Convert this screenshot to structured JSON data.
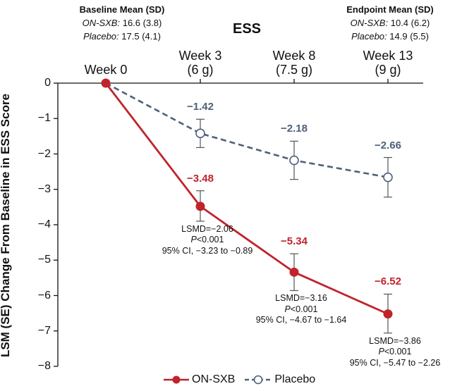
{
  "baseline": {
    "title": "Baseline Mean (SD)",
    "sxb_label": "ON-SXB:",
    "sxb_value": "16.6 (3.8)",
    "placebo_label": "Placebo:",
    "placebo_value": "17.5 (4.1)"
  },
  "endpoint": {
    "title": "Endpoint Mean (SD)",
    "sxb_label": "ON-SXB:",
    "sxb_value": "10.4 (6.2)",
    "placebo_label": "Placebo:",
    "placebo_value": "14.9 (5.5)"
  },
  "chart_data": {
    "type": "line",
    "title": "ESS",
    "ylabel": "LSM (SE) Change From Baseline in ESS Score",
    "xlabel": "",
    "categories": [
      [
        "Week 0"
      ],
      [
        "Week 3",
        "(6 g)"
      ],
      [
        "Week 8",
        "(7.5 g)"
      ],
      [
        "Week 13",
        "(9 g)"
      ]
    ],
    "ylim": [
      -8,
      0
    ],
    "yticks": [
      "0",
      "−1",
      "−2",
      "−3",
      "−4",
      "−5",
      "−6",
      "−7",
      "−8"
    ],
    "series": [
      {
        "name": "Placebo",
        "color": "#4e607a",
        "dashed": true,
        "marker": "open-circle",
        "values": [
          0,
          -1.42,
          -2.18,
          -2.66
        ],
        "se_lower": [
          null,
          -1.82,
          -2.72,
          -3.22
        ],
        "se_upper": [
          null,
          -1.02,
          -1.64,
          -2.1
        ],
        "labels": [
          "",
          "−1.42",
          "−2.18",
          "−2.66"
        ]
      },
      {
        "name": "ON-SXB",
        "color": "#c0232b",
        "dashed": false,
        "marker": "filled-circle",
        "values": [
          0,
          -3.48,
          -5.34,
          -6.52
        ],
        "se_lower": [
          null,
          -3.9,
          -5.86,
          -7.06
        ],
        "se_upper": [
          null,
          -3.04,
          -4.82,
          -5.96
        ],
        "labels": [
          "",
          "−3.48",
          "−5.34",
          "−6.52"
        ]
      }
    ],
    "annotations": [
      {
        "category": 1,
        "lines": [
          "LSMD=−2.06",
          "P<0.001",
          "95% CI, −3.23 to −0.89"
        ]
      },
      {
        "category": 2,
        "lines": [
          "LSMD=−3.16",
          "P<0.001",
          "95% CI, −4.67 to −1.64"
        ]
      },
      {
        "category": 3,
        "lines": [
          "LSMD=−3.86",
          "P<0.001",
          "95% CI, −5.47 to −2.26"
        ]
      }
    ],
    "legend": [
      "ON-SXB",
      "Placebo"
    ],
    "legend_position": "bottom",
    "grid": false
  }
}
